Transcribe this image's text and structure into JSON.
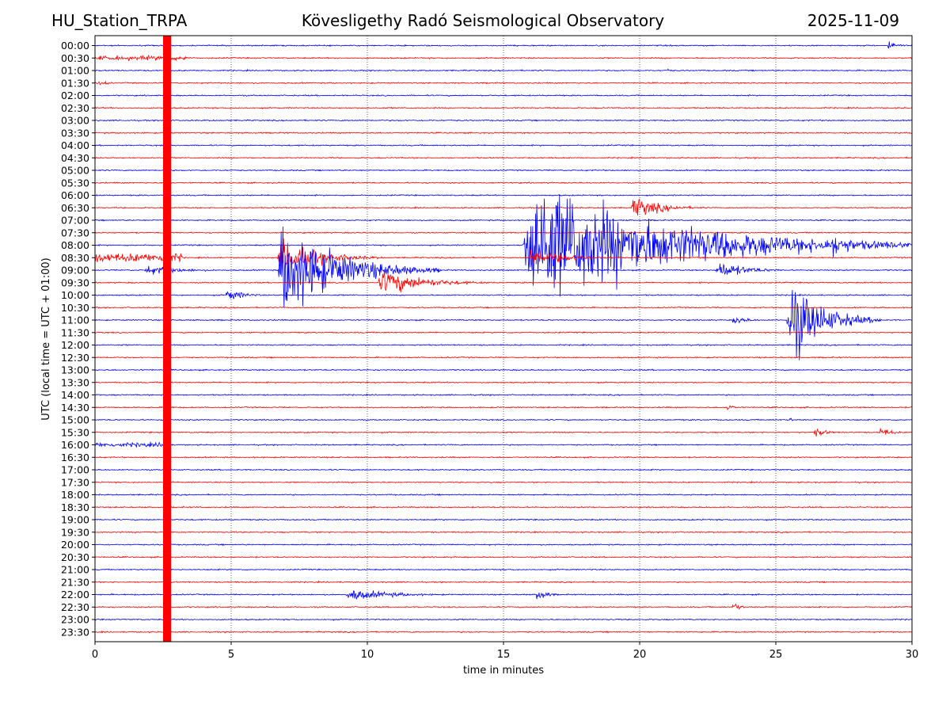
{
  "header": {
    "station": "HU_Station_TRPA",
    "observatory": "Kövesligethy Radó Seismological Observatory",
    "date": "2025-11-09"
  },
  "chart_data": {
    "type": "helicorder",
    "title": "Kövesligethy Radó Seismological Observatory",
    "xlabel": "time in minutes",
    "ylabel": "UTC (local time = UTC + 01:00)",
    "xlim": [
      0,
      30
    ],
    "x_ticks": [
      0,
      5,
      10,
      15,
      20,
      25,
      30
    ],
    "grid": "vertical dotted lines at 5-minute intervals",
    "colors": {
      "even_rows": "#0000ff",
      "odd_rows": "#ff0000",
      "axis": "#000000",
      "grid": "#000000"
    },
    "rows": [
      "00:00",
      "00:30",
      "01:00",
      "01:30",
      "02:00",
      "02:30",
      "03:00",
      "03:30",
      "04:00",
      "04:30",
      "05:00",
      "05:30",
      "06:00",
      "06:30",
      "07:00",
      "07:30",
      "08:00",
      "08:30",
      "09:00",
      "09:30",
      "10:00",
      "10:30",
      "11:00",
      "11:30",
      "12:00",
      "12:30",
      "13:00",
      "13:30",
      "14:00",
      "14:30",
      "15:00",
      "15:30",
      "16:00",
      "16:30",
      "17:00",
      "17:30",
      "18:00",
      "18:30",
      "19:00",
      "19:30",
      "20:00",
      "20:30",
      "21:00",
      "21:30",
      "22:00",
      "22:30",
      "23:00",
      "23:30"
    ],
    "events": [
      {
        "row": "00:00",
        "start_min": 29.1,
        "duration_min": 0.9,
        "amplitude_rows": 0.6,
        "kind": "local"
      },
      {
        "row": "00:30",
        "start_min": 0.0,
        "duration_min": 3.5,
        "amplitude_rows": 0.2,
        "kind": "noise"
      },
      {
        "row": "01:00",
        "start_min": 21.0,
        "duration_min": 0.6,
        "amplitude_rows": 0.2,
        "kind": "local"
      },
      {
        "row": "01:30",
        "start_min": 0.0,
        "duration_min": 0.5,
        "amplitude_rows": 0.15,
        "kind": "noise"
      },
      {
        "row": "06:30",
        "start_min": 19.7,
        "duration_min": 3.0,
        "amplitude_rows": 1.2,
        "kind": "regional"
      },
      {
        "row": "08:00",
        "start_min": 15.7,
        "duration_min": 14.3,
        "amplitude_rows": 7.0,
        "kind": "earthquake"
      },
      {
        "row": "08:00",
        "start_min": 27.0,
        "duration_min": 3.0,
        "amplitude_rows": 1.3,
        "kind": "aftershock"
      },
      {
        "row": "08:30",
        "start_min": 0.0,
        "duration_min": 3.2,
        "amplitude_rows": 0.4,
        "kind": "noise"
      },
      {
        "row": "08:30",
        "start_min": 6.7,
        "duration_min": 4.0,
        "amplitude_rows": 2.0,
        "kind": "regional"
      },
      {
        "row": "08:30",
        "start_min": 15.9,
        "duration_min": 4.0,
        "amplitude_rows": 1.0,
        "kind": "coda"
      },
      {
        "row": "09:00",
        "start_min": 1.8,
        "duration_min": 4.0,
        "amplitude_rows": 0.5,
        "kind": "regional"
      },
      {
        "row": "09:00",
        "start_min": 6.7,
        "duration_min": 6.0,
        "amplitude_rows": 5.0,
        "kind": "earthquake"
      },
      {
        "row": "09:00",
        "start_min": 22.8,
        "duration_min": 3.0,
        "amplitude_rows": 1.0,
        "kind": "regional"
      },
      {
        "row": "09:30",
        "start_min": 10.4,
        "duration_min": 4.5,
        "amplitude_rows": 1.4,
        "kind": "regional"
      },
      {
        "row": "10:00",
        "start_min": 4.8,
        "duration_min": 1.8,
        "amplitude_rows": 0.7,
        "kind": "regional"
      },
      {
        "row": "11:00",
        "start_min": 23.4,
        "duration_min": 1.5,
        "amplitude_rows": 0.5,
        "kind": "regional"
      },
      {
        "row": "11:00",
        "start_min": 25.4,
        "duration_min": 3.5,
        "amplitude_rows": 4.5,
        "kind": "earthquake"
      },
      {
        "row": "12:00",
        "start_min": 7.7,
        "duration_min": 0.3,
        "amplitude_rows": 0.3,
        "kind": "local"
      },
      {
        "row": "14:30",
        "start_min": 23.2,
        "duration_min": 0.8,
        "amplitude_rows": 0.4,
        "kind": "local"
      },
      {
        "row": "15:00",
        "start_min": 25.5,
        "duration_min": 0.4,
        "amplitude_rows": 0.3,
        "kind": "local"
      },
      {
        "row": "15:30",
        "start_min": 26.4,
        "duration_min": 1.4,
        "amplitude_rows": 0.5,
        "kind": "regional"
      },
      {
        "row": "15:30",
        "start_min": 28.8,
        "duration_min": 1.2,
        "amplitude_rows": 0.6,
        "kind": "regional"
      },
      {
        "row": "16:00",
        "start_min": 0.0,
        "duration_min": 2.5,
        "amplitude_rows": 0.2,
        "kind": "noise"
      },
      {
        "row": "22:00",
        "start_min": 9.2,
        "duration_min": 5.0,
        "amplitude_rows": 0.6,
        "kind": "regional"
      },
      {
        "row": "22:00",
        "start_min": 16.2,
        "duration_min": 1.0,
        "amplitude_rows": 0.8,
        "kind": "local"
      },
      {
        "row": "22:30",
        "start_min": 23.4,
        "duration_min": 0.8,
        "amplitude_rows": 0.6,
        "kind": "local"
      }
    ],
    "clipping_band": {
      "start_min": 2.5,
      "end_min": 2.8,
      "color": "#ff0000",
      "description": "saturated vertical red band spanning all rows"
    }
  }
}
